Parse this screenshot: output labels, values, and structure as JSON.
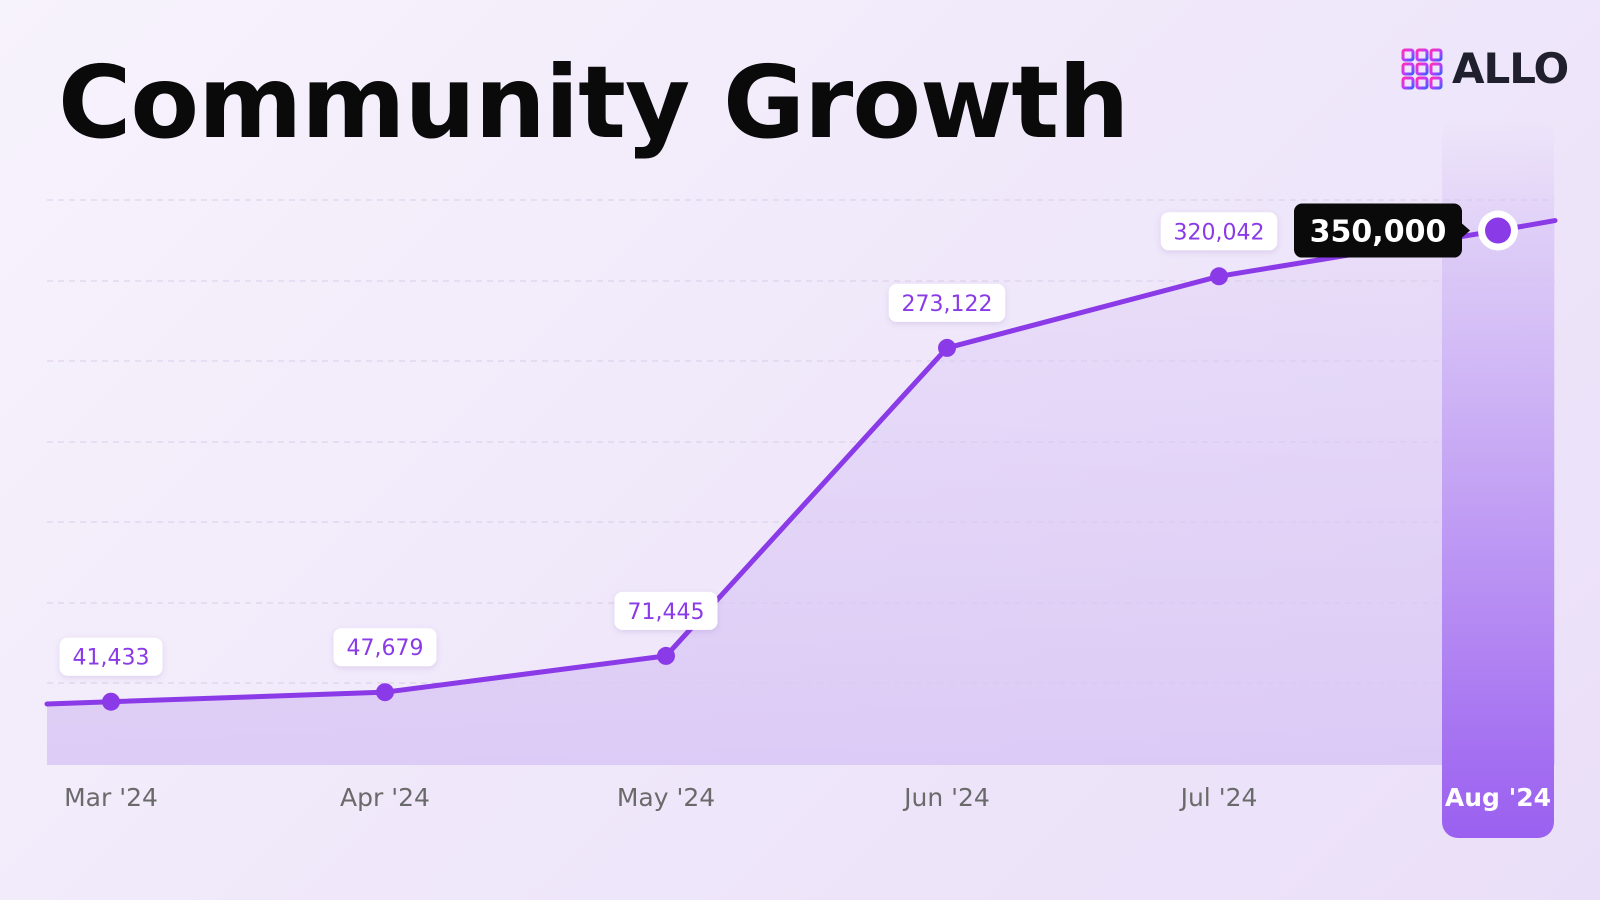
{
  "title": "Community Growth",
  "brand": {
    "name": "ALLO"
  },
  "colors": {
    "accent": "#8a3ae6",
    "accent_light": "#d9c6f5",
    "highlight_band_top": "#d6c1f6",
    "highlight_band_bottom": "#9a5ff0",
    "callout_bg": "#0a0a0a"
  },
  "chart_data": {
    "type": "area",
    "title": "Community Growth",
    "categories": [
      "Mar '24",
      "Apr '24",
      "May '24",
      "Jun '24",
      "Jul '24",
      "Aug '24"
    ],
    "series": [
      {
        "values": [
          41433,
          47679,
          71445,
          273122,
          320042,
          350000
        ]
      }
    ],
    "data_labels": [
      "41,433",
      "47,679",
      "71,445",
      "273,122",
      "320,042",
      "350,000"
    ],
    "highlighted_category": "Aug '24",
    "grid": "horizontal dashed",
    "ylim": [
      0,
      370000
    ]
  }
}
